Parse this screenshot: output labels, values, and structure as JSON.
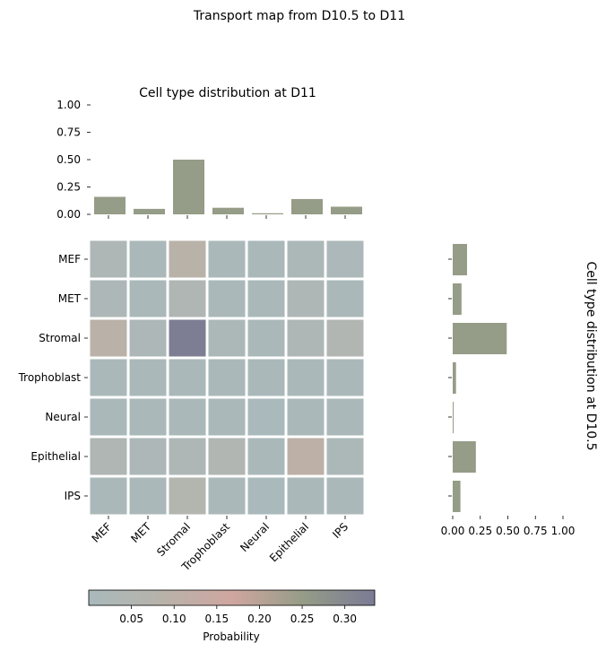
{
  "figure": {
    "title": "Transport map from D10.5 to D11"
  },
  "colors": {
    "bar": "#959c87",
    "colormap_stops": [
      "#a9b9bc",
      "#b7b3aa",
      "#cfa6a0",
      "#959c87",
      "#7b7b95"
    ],
    "grid_line": "#ffffff"
  },
  "chart_data": [
    {
      "id": "top_bar",
      "type": "bar",
      "title": "Cell type distribution at D11",
      "categories": [
        "MEF",
        "MET",
        "Stromal",
        "Trophoblast",
        "Neural",
        "Epithelial",
        "IPS"
      ],
      "values": [
        0.16,
        0.05,
        0.5,
        0.06,
        0.01,
        0.14,
        0.07
      ],
      "ylim": [
        0,
        1
      ],
      "yticks": [
        "0.00",
        "0.25",
        "0.50",
        "0.75",
        "1.00"
      ]
    },
    {
      "id": "heatmap",
      "type": "heatmap",
      "rows": [
        "MEF",
        "MET",
        "Stromal",
        "Trophoblast",
        "Neural",
        "Epithelial",
        "IPS"
      ],
      "cols": [
        "MEF",
        "MET",
        "Stromal",
        "Trophoblast",
        "Neural",
        "Epithelial",
        "IPS"
      ],
      "values": [
        [
          0.03,
          0.012,
          0.09,
          0.012,
          0.008,
          0.018,
          0.015
        ],
        [
          0.022,
          0.012,
          0.035,
          0.012,
          0.008,
          0.03,
          0.012
        ],
        [
          0.095,
          0.025,
          0.33,
          0.018,
          0.012,
          0.03,
          0.045
        ],
        [
          0.01,
          0.01,
          0.012,
          0.01,
          0.008,
          0.01,
          0.012
        ],
        [
          0.008,
          0.008,
          0.008,
          0.008,
          0.006,
          0.008,
          0.008
        ],
        [
          0.035,
          0.025,
          0.03,
          0.045,
          0.008,
          0.105,
          0.02
        ],
        [
          0.012,
          0.01,
          0.06,
          0.008,
          0.005,
          0.01,
          0.012
        ]
      ],
      "colorbar": {
        "label": "Probability",
        "vmin": 0.0,
        "vmax": 0.335,
        "ticks": [
          "0.05",
          "0.10",
          "0.15",
          "0.20",
          "0.25",
          "0.30"
        ]
      }
    },
    {
      "id": "side_bar",
      "type": "bar",
      "orientation": "horizontal",
      "title": "Cell type distribution at D10.5",
      "categories": [
        "MEF",
        "MET",
        "Stromal",
        "Trophoblast",
        "Neural",
        "Epithelial",
        "IPS"
      ],
      "values": [
        0.13,
        0.08,
        0.49,
        0.03,
        0.005,
        0.21,
        0.07
      ],
      "xlim": [
        0,
        1
      ],
      "xticks": [
        "0.00",
        "0.25",
        "0.50",
        "0.75",
        "1.00"
      ]
    }
  ]
}
